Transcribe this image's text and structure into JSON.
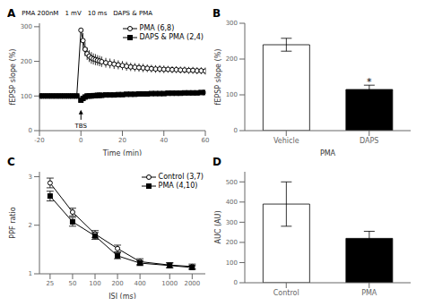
{
  "chart_data": [
    {
      "type": "line",
      "title": "A",
      "xlabel": "Time (min)",
      "ylabel": "fEPSP slope (%)",
      "xlim": [
        -20,
        60
      ],
      "ylim": [
        0,
        310
      ],
      "xticks": [
        -20,
        0,
        20,
        40,
        60
      ],
      "yticks": [
        0,
        100,
        200,
        300
      ],
      "legend": "upper right",
      "series": [
        {
          "name": "PMA (6,8)",
          "color": "black",
          "marker": "o",
          "x": [
            -20,
            -18,
            -16,
            -14,
            -12,
            -10,
            -8,
            -6,
            -4,
            -2,
            0,
            1,
            2,
            3,
            4,
            5,
            6,
            7,
            8,
            9,
            10,
            12,
            14,
            16,
            18,
            20,
            22,
            24,
            26,
            28,
            30,
            32,
            34,
            36,
            38,
            40,
            42,
            44,
            46,
            48,
            50,
            52,
            54,
            56,
            58,
            60
          ],
          "values": [
            100,
            100,
            100,
            100,
            100,
            100,
            100,
            100,
            100,
            100,
            290,
            260,
            235,
            222,
            215,
            210,
            207,
            205,
            203,
            201,
            199,
            196,
            194,
            192,
            190,
            188,
            186,
            184,
            183,
            182,
            181,
            180,
            179,
            178,
            178,
            177,
            177,
            176,
            176,
            175,
            175,
            174,
            174,
            173,
            173,
            172
          ],
          "errors": [
            5,
            5,
            5,
            5,
            5,
            5,
            5,
            5,
            5,
            5,
            0,
            22,
            20,
            18,
            17,
            17,
            16,
            16,
            15,
            15,
            15,
            14,
            14,
            14,
            13,
            13,
            13,
            12,
            12,
            12,
            12,
            11,
            11,
            11,
            11,
            11,
            10,
            10,
            10,
            10,
            10,
            10,
            10,
            10,
            10,
            10
          ]
        },
        {
          "name": "DAPS & PMA (2,4)",
          "color": "black",
          "marker": "s",
          "x": [
            -20,
            -18,
            -16,
            -14,
            -12,
            -10,
            -8,
            -6,
            -4,
            -2,
            0,
            1,
            2,
            3,
            4,
            5,
            6,
            7,
            8,
            9,
            10,
            12,
            14,
            16,
            18,
            20,
            22,
            24,
            26,
            28,
            30,
            32,
            34,
            36,
            38,
            40,
            42,
            44,
            46,
            48,
            50,
            52,
            54,
            56,
            58,
            60
          ],
          "values": [
            100,
            100,
            100,
            100,
            100,
            100,
            100,
            100,
            100,
            100,
            88,
            93,
            97,
            100,
            100,
            100,
            101,
            101,
            102,
            102,
            102,
            103,
            103,
            103,
            104,
            104,
            105,
            105,
            105,
            106,
            106,
            106,
            107,
            107,
            107,
            107,
            108,
            108,
            108,
            108,
            109,
            109,
            109,
            109,
            110,
            110
          ],
          "errors": [
            3,
            3,
            3,
            3,
            3,
            3,
            3,
            3,
            3,
            3,
            5,
            5,
            4,
            4,
            4,
            4,
            4,
            4,
            4,
            4,
            4,
            4,
            4,
            4,
            4,
            4,
            4,
            4,
            4,
            4,
            4,
            4,
            4,
            4,
            4,
            4,
            4,
            4,
            4,
            4,
            4,
            4,
            4,
            4,
            4,
            4
          ]
        }
      ],
      "annotations": [
        {
          "text": "TBS",
          "x": 0,
          "y": 3
        },
        {
          "text": "PMA 200nM"
        },
        {
          "text": "1 mV"
        },
        {
          "text": "10 ms"
        },
        {
          "text": "DAPS & PMA"
        }
      ]
    },
    {
      "type": "bar",
      "title": "B",
      "xlabel": "PMA",
      "ylabel": "fEPSP slope (%)",
      "categories": [
        "Vehicle",
        "DAPS"
      ],
      "values": [
        240,
        115
      ],
      "errors": [
        18,
        12
      ],
      "colors": [
        "white",
        "black"
      ],
      "ylim": [
        0,
        300
      ],
      "yticks": [
        0,
        100,
        200,
        300
      ],
      "annotations": [
        {
          "text": "*",
          "x": "DAPS",
          "y": 138
        }
      ]
    },
    {
      "type": "line",
      "title": "C",
      "xlabel": "ISI (ms)",
      "ylabel": "PPF ratio",
      "log": "x",
      "xlim": [
        18,
        3000
      ],
      "ylim": [
        1.0,
        3.1
      ],
      "xticks": [
        25,
        50,
        100,
        200,
        400,
        1000,
        2000
      ],
      "yticks": [
        1,
        2,
        3
      ],
      "legend": "upper right",
      "series": [
        {
          "name": "Control (3,7)",
          "color": "black",
          "marker": "o",
          "x": [
            25,
            50,
            100,
            200,
            400,
            1000,
            2000
          ],
          "values": [
            2.87,
            2.27,
            1.82,
            1.52,
            1.25,
            1.18,
            1.15
          ],
          "errors": [
            0.1,
            0.08,
            0.07,
            0.07,
            0.06,
            0.05,
            0.05
          ]
        },
        {
          "name": "PMA (4,10)",
          "color": "black",
          "marker": "s",
          "x": [
            25,
            50,
            100,
            200,
            400,
            1000,
            2000
          ],
          "values": [
            2.6,
            2.07,
            1.78,
            1.37,
            1.22,
            1.17,
            1.13
          ],
          "errors": [
            0.1,
            0.09,
            0.07,
            0.06,
            0.05,
            0.05,
            0.04
          ]
        }
      ]
    },
    {
      "type": "bar",
      "title": "D",
      "ylabel": "AUC (AU)",
      "categories": [
        "Control",
        "PMA"
      ],
      "values": [
        390,
        220
      ],
      "errors": [
        110,
        35
      ],
      "colors": [
        "white",
        "black"
      ],
      "ylim": [
        0,
        550
      ],
      "yticks": [
        0,
        100,
        200,
        300,
        400,
        500
      ]
    }
  ]
}
